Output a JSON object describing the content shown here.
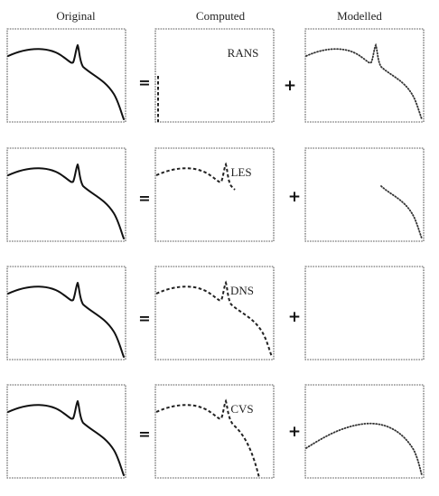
{
  "headers": {
    "original": "Original",
    "computed": "Computed",
    "modelled": "Modelled"
  },
  "rows": [
    {
      "method": "RANS",
      "equals": "=",
      "plus": "+"
    },
    {
      "method": "LES",
      "equals": "=",
      "plus": "+"
    },
    {
      "method": "DNS",
      "equals": "=",
      "plus": "+"
    },
    {
      "method": "CVS",
      "equals": "=",
      "plus": "+"
    }
  ]
}
